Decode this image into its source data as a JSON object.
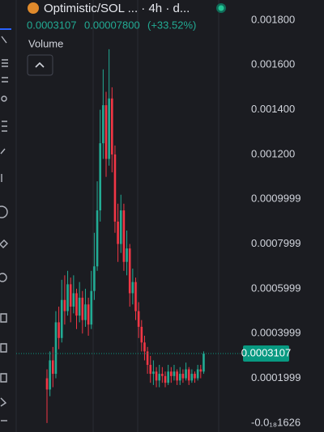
{
  "header": {
    "title": "Optimistic/SOL ... · 4h · d...",
    "change": "0.00007800",
    "change_pct": "(+33.52%)"
  },
  "chart_data": {
    "type": "candlestick",
    "volume_label": "Volume",
    "up_color": "#22ab94",
    "down_color": "#f23645",
    "last_price": 0.0003107,
    "last_price_color": "#089981",
    "ylim": [
      -4e-05,
      0.00189
    ],
    "yticks": [
      {
        "value": 0.0018,
        "label": "0.001800"
      },
      {
        "value": 0.0016,
        "label": "0.001600"
      },
      {
        "value": 0.0014,
        "label": "0.001400"
      },
      {
        "value": 0.0012,
        "label": "0.001200"
      },
      0.0009999,
      0.0007999,
      0.0005999,
      0.0003999,
      0.0001999,
      {
        "value": -1.626e-19,
        "label": "-0.0₁₈1626"
      }
    ],
    "open": [
      0.0002,
      0.00015,
      0.00028,
      0.00022,
      0.00045,
      0.00038,
      0.00055,
      0.0005,
      0.00062,
      0.00052,
      0.00058,
      0.00048,
      0.00056,
      0.00046,
      0.00053,
      0.00044,
      0.00059,
      0.0007,
      0.00095,
      0.00125,
      0.00142,
      0.00118,
      0.00145,
      0.0012,
      0.0009,
      0.0008,
      0.00095,
      0.00072,
      0.00078,
      0.00058,
      0.00063,
      0.0005,
      0.00043,
      0.00036,
      0.00032,
      0.00026,
      0.00022,
      0.00023,
      0.00019,
      0.00022,
      0.00021,
      0.00018,
      0.00023,
      0.00021,
      0.00023,
      0.00019,
      0.00022,
      0.0002,
      0.00024,
      0.00019,
      0.00022,
      0.0002,
      0.00024,
      0.00023
    ],
    "high": [
      0.00024,
      0.00032,
      0.00034,
      0.0005,
      0.00052,
      0.00064,
      0.00066,
      0.00068,
      0.00065,
      0.00066,
      0.0006,
      0.00063,
      0.00059,
      0.0006,
      0.00056,
      0.00068,
      0.00085,
      0.00108,
      0.0014,
      0.00158,
      0.00148,
      0.00167,
      0.0015,
      0.00124,
      0.00098,
      0.00102,
      0.00098,
      0.00086,
      0.0008,
      0.00069,
      0.00065,
      0.00054,
      0.00046,
      0.00039,
      0.00034,
      0.0003,
      0.00028,
      0.00025,
      0.00026,
      0.00025,
      0.00023,
      0.00026,
      0.00025,
      0.00026,
      0.00024,
      0.00025,
      0.00024,
      0.00027,
      0.00025,
      0.00024,
      0.00023,
      0.00026,
      0.00026,
      0.00032
    ],
    "low": [
      0.0,
      0.00012,
      0.00016,
      0.0002,
      0.00033,
      0.00036,
      0.00044,
      0.00048,
      0.00045,
      0.00049,
      0.00042,
      0.00045,
      0.0004,
      0.00043,
      0.00039,
      0.00042,
      0.00055,
      0.00068,
      0.0009,
      0.00118,
      0.0011,
      0.00115,
      0.00112,
      0.00085,
      0.00072,
      0.00076,
      0.00068,
      0.00066,
      0.00052,
      0.00053,
      0.00046,
      0.00038,
      0.00032,
      0.00028,
      0.00022,
      0.00018,
      0.00017,
      0.00016,
      0.00016,
      0.00018,
      0.00016,
      0.00017,
      0.00018,
      0.00019,
      0.00017,
      0.00017,
      0.00018,
      0.00019,
      0.00017,
      0.00018,
      0.00018,
      0.00019,
      0.0002,
      0.00022
    ],
    "close": [
      0.00015,
      0.00028,
      0.00022,
      0.00045,
      0.00038,
      0.00055,
      0.0005,
      0.00062,
      0.00052,
      0.00058,
      0.00048,
      0.00056,
      0.00046,
      0.00053,
      0.00044,
      0.00059,
      0.0007,
      0.00095,
      0.00125,
      0.00142,
      0.00118,
      0.00145,
      0.0012,
      0.0009,
      0.0008,
      0.00095,
      0.00072,
      0.00078,
      0.00058,
      0.00063,
      0.0005,
      0.00043,
      0.00036,
      0.00032,
      0.00026,
      0.00022,
      0.00023,
      0.00019,
      0.00022,
      0.00021,
      0.00018,
      0.00023,
      0.00021,
      0.00023,
      0.00019,
      0.00022,
      0.0002,
      0.00024,
      0.00019,
      0.00022,
      0.0002,
      0.00024,
      0.00023,
      0.0003107
    ]
  }
}
